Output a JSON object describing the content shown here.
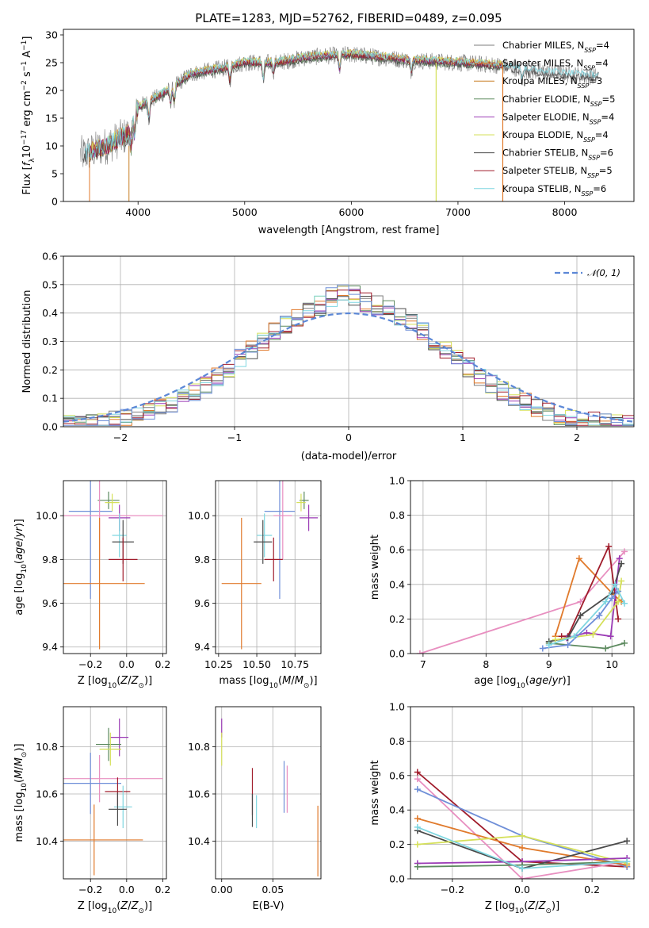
{
  "title": "PLATE=1283, MJD=52762, FIBERID=0489, z=0.095",
  "colors": {
    "c0": "#7e7e7e",
    "c1": "#e07a2c",
    "c2": "#c87f25",
    "c3": "#5d8a5f",
    "c4": "#9b3bb5",
    "c5": "#d5e05a",
    "c6": "#4a4a4a",
    "c7": "#a01c2b",
    "c8": "#7fd6e0",
    "gauss": "#5b87d6",
    "extra1": "#6f8fd8",
    "extra2": "#e88fc0"
  },
  "chart_data": [
    {
      "id": "spectrum",
      "type": "line",
      "title": "PLATE=1283, MJD=52762, FIBERID=0489, z=0.095",
      "xlabel": "wavelength [Angstrom, rest frame]",
      "ylabel": "Flux [f_λ10^-17 erg cm^-2 s^-1 A^-1]",
      "xlim": [
        3300,
        8650
      ],
      "ylim": [
        0,
        31
      ],
      "xticks": [
        4000,
        5000,
        6000,
        7000,
        8000
      ],
      "yticks": [
        0,
        5,
        10,
        15,
        20,
        25,
        30
      ],
      "grid": false,
      "legend_position": "top-right",
      "data_points": [
        [
          3500,
          8.5
        ],
        [
          3700,
          10
        ],
        [
          3900,
          12
        ],
        [
          4000,
          17
        ],
        [
          4200,
          19
        ],
        [
          4500,
          23
        ],
        [
          4800,
          24
        ],
        [
          5000,
          25
        ],
        [
          5300,
          25
        ],
        [
          5600,
          26
        ],
        [
          6000,
          26.5
        ],
        [
          6500,
          25.5
        ],
        [
          7000,
          25
        ],
        [
          7400,
          24.5
        ],
        [
          7700,
          23.5
        ],
        [
          8000,
          23
        ],
        [
          8300,
          22.5
        ]
      ],
      "series": [
        {
          "name": "Chabrier MILES, N_SSP=4",
          "color": "#7e7e7e"
        },
        {
          "name": "Salpeter MILES, N_SSP=4",
          "color": "#e07a2c"
        },
        {
          "name": "Kroupa MILES, N_SSP=3",
          "color": "#c87f25"
        },
        {
          "name": "Chabrier ELODIE, N_SSP=5",
          "color": "#5d8a5f"
        },
        {
          "name": "Salpeter ELODIE, N_SSP=4",
          "color": "#9b3bb5"
        },
        {
          "name": "Kroupa ELODIE, N_SSP=4",
          "color": "#d5e05a"
        },
        {
          "name": "Chabrier STELIB, N_SSP=6",
          "color": "#4a4a4a"
        },
        {
          "name": "Salpeter STELIB, N_SSP=5",
          "color": "#a01c2b"
        },
        {
          "name": "Kroupa STELIB, N_SSP=6",
          "color": "#7fd6e0"
        }
      ]
    },
    {
      "id": "residuals",
      "type": "area",
      "xlabel": "(data-model)/error",
      "ylabel": "Normed distribution",
      "xlim": [
        -2.5,
        2.5
      ],
      "ylim": [
        0,
        0.6
      ],
      "xticks": [
        -2,
        -1,
        0,
        1,
        2
      ],
      "yticks": [
        0.0,
        0.1,
        0.2,
        0.3,
        0.4,
        0.5,
        0.6
      ],
      "grid": true,
      "legend": "𝒩(0, 1)",
      "legend_position": "top-right",
      "bin_width": 0.1
    },
    {
      "id": "age-vs-Z",
      "type": "scatter",
      "xlabel": "Z [log10(Z/Z⊙)]",
      "ylabel": "age  [log10(age/yr)]",
      "xlim": [
        -0.35,
        0.22
      ],
      "ylim": [
        9.37,
        10.16
      ],
      "xticks": [
        -0.2,
        0.0,
        0.2
      ],
      "yticks": [
        9.4,
        9.6,
        9.8,
        10.0
      ],
      "grid": true,
      "points": [
        {
          "color": "#5d8a5f",
          "x": -0.1,
          "xerr": 0.06,
          "y": 10.07,
          "yerr": 0.04
        },
        {
          "color": "#d5e05a",
          "x": -0.08,
          "xerr": 0.04,
          "y": 10.06,
          "yerr": 0.04
        },
        {
          "color": "#6f8fd8",
          "x": -0.2,
          "xerr": 0.12,
          "y": 10.02,
          "yerr": 0.4
        },
        {
          "color": "#e88fc0",
          "x": -0.15,
          "xerr": 0.35,
          "y": 10.0,
          "yerr": 0.2
        },
        {
          "color": "#9b3bb5",
          "x": -0.04,
          "xerr": 0.06,
          "y": 9.99,
          "yerr": 0.06
        },
        {
          "color": "#7fd6e0",
          "x": -0.04,
          "xerr": 0.04,
          "y": 9.91,
          "yerr": 0.1
        },
        {
          "color": "#4a4a4a",
          "x": -0.02,
          "xerr": 0.06,
          "y": 9.88,
          "yerr": 0.1
        },
        {
          "color": "#a01c2b",
          "x": -0.02,
          "xerr": 0.08,
          "y": 9.8,
          "yerr": 0.1
        },
        {
          "color": "#e07a2c",
          "x": -0.15,
          "xerr": 0.25,
          "y": 9.69,
          "yerr": 0.3
        }
      ]
    },
    {
      "id": "age-vs-mass",
      "type": "scatter",
      "xlabel": "mass [log10(M/M⊙)]",
      "ylabel": "",
      "xlim": [
        10.23,
        10.92
      ],
      "ylim": [
        9.37,
        10.16
      ],
      "xticks": [
        10.25,
        10.5,
        10.75
      ],
      "yticks": [
        9.4,
        9.6,
        9.8,
        10.0
      ],
      "grid": true,
      "points": [
        {
          "color": "#5d8a5f",
          "x": 10.81,
          "xerr": 0.03,
          "y": 10.07,
          "yerr": 0.04
        },
        {
          "color": "#d5e05a",
          "x": 10.79,
          "xerr": 0.03,
          "y": 10.06,
          "yerr": 0.04
        },
        {
          "color": "#6f8fd8",
          "x": 10.65,
          "xerr": 0.1,
          "y": 10.02,
          "yerr": 0.4
        },
        {
          "color": "#e88fc0",
          "x": 10.67,
          "xerr": 0.06,
          "y": 10.0,
          "yerr": 0.2
        },
        {
          "color": "#9b3bb5",
          "x": 10.84,
          "xerr": 0.06,
          "y": 9.99,
          "yerr": 0.06
        },
        {
          "color": "#7fd6e0",
          "x": 10.55,
          "xerr": 0.05,
          "y": 9.91,
          "yerr": 0.1
        },
        {
          "color": "#4a4a4a",
          "x": 10.54,
          "xerr": 0.06,
          "y": 9.88,
          "yerr": 0.1
        },
        {
          "color": "#a01c2b",
          "x": 10.61,
          "xerr": 0.06,
          "y": 9.8,
          "yerr": 0.1
        },
        {
          "color": "#e07a2c",
          "x": 10.4,
          "xerr": 0.13,
          "y": 9.69,
          "yerr": 0.3
        }
      ]
    },
    {
      "id": "massweight-vs-age",
      "type": "line",
      "xlabel": "age  [log10(age/yr)]",
      "ylabel": "mass weight",
      "xlim": [
        6.8,
        10.35
      ],
      "ylim": [
        0,
        1
      ],
      "xticks": [
        7,
        8,
        9,
        10
      ],
      "yticks": [
        0.0,
        0.2,
        0.4,
        0.6,
        0.8,
        1.0
      ],
      "grid": true,
      "series": [
        {
          "color": "#e88fc0",
          "x": [
            6.95,
            9.5,
            10.2
          ],
          "y": [
            0.0,
            0.3,
            0.59
          ]
        },
        {
          "color": "#e07a2c",
          "x": [
            9.1,
            9.48,
            10.0,
            10.15
          ],
          "y": [
            0.1,
            0.55,
            0.35,
            0.3
          ]
        },
        {
          "color": "#a01c2b",
          "x": [
            9.2,
            9.3,
            9.95,
            10.1
          ],
          "y": [
            0.1,
            0.1,
            0.62,
            0.2
          ]
        },
        {
          "color": "#9b3bb5",
          "x": [
            9.28,
            9.6,
            9.98,
            10.12
          ],
          "y": [
            0.09,
            0.12,
            0.1,
            0.55
          ]
        },
        {
          "color": "#4a4a4a",
          "x": [
            9.0,
            9.3,
            9.5,
            10.0,
            10.15
          ],
          "y": [
            0.07,
            0.09,
            0.22,
            0.35,
            0.52
          ]
        },
        {
          "color": "#5d8a5f",
          "x": [
            9.0,
            9.9,
            10.2
          ],
          "y": [
            0.06,
            0.03,
            0.06
          ]
        },
        {
          "color": "#d5e05a",
          "x": [
            9.1,
            9.7,
            10.1,
            10.15
          ],
          "y": [
            0.08,
            0.11,
            0.3,
            0.42
          ]
        },
        {
          "color": "#6f8fd8",
          "x": [
            8.9,
            9.3,
            9.8,
            10.0,
            10.1
          ],
          "y": [
            0.03,
            0.05,
            0.22,
            0.32,
            0.36
          ]
        },
        {
          "color": "#7fd6e0",
          "x": [
            9.0,
            9.4,
            9.9,
            10.05,
            10.2
          ],
          "y": [
            0.05,
            0.1,
            0.3,
            0.4,
            0.29
          ]
        }
      ]
    },
    {
      "id": "mass-vs-Z",
      "type": "scatter",
      "xlabel": "Z [log10(Z/Z⊙)]",
      "ylabel": "mass [log10(M/M⊙)]",
      "xlim": [
        -0.35,
        0.22
      ],
      "ylim": [
        10.24,
        10.97
      ],
      "xticks": [
        -0.2,
        0.0,
        0.2
      ],
      "yticks": [
        10.4,
        10.6,
        10.8
      ],
      "grid": true,
      "points": [
        {
          "color": "#9b3bb5",
          "x": -0.04,
          "xerr": 0.05,
          "y": 10.84,
          "yerr": 0.08
        },
        {
          "color": "#5d8a5f",
          "x": -0.1,
          "xerr": 0.07,
          "y": 10.81,
          "yerr": 0.07
        },
        {
          "color": "#d5e05a",
          "x": -0.09,
          "xerr": 0.06,
          "y": 10.79,
          "yerr": 0.07
        },
        {
          "color": "#e88fc0",
          "x": -0.15,
          "xerr": 0.35,
          "y": 10.665,
          "yerr": 0.1
        },
        {
          "color": "#6f8fd8",
          "x": -0.2,
          "xerr": 0.17,
          "y": 10.645,
          "yerr": 0.13
        },
        {
          "color": "#a01c2b",
          "x": -0.05,
          "xerr": 0.07,
          "y": 10.61,
          "yerr": 0.06
        },
        {
          "color": "#7fd6e0",
          "x": -0.02,
          "xerr": 0.05,
          "y": 10.545,
          "yerr": 0.09
        },
        {
          "color": "#4a4a4a",
          "x": -0.05,
          "xerr": 0.05,
          "y": 10.535,
          "yerr": 0.07
        },
        {
          "color": "#e07a2c",
          "x": -0.18,
          "xerr": 0.27,
          "y": 10.405,
          "yerr": 0.15
        }
      ]
    },
    {
      "id": "mass-vs-EBV",
      "type": "scatter",
      "xlabel": "E(B-V)",
      "ylabel": "",
      "xlim": [
        -0.006,
        0.097
      ],
      "ylim": [
        10.24,
        10.97
      ],
      "xticks": [
        0.0,
        0.05
      ],
      "yticks": [
        10.4,
        10.6,
        10.8
      ],
      "grid": true,
      "points": [
        {
          "color": "#9b3bb5",
          "x": 0.0,
          "y": 10.88,
          "yerr": 0.04
        },
        {
          "color": "#d5e05a",
          "x": 0.0,
          "y": 10.79,
          "yerr": 0.07
        },
        {
          "color": "#a01c2b",
          "x": 0.03,
          "y": 10.61,
          "yerr": 0.1
        },
        {
          "color": "#4a4a4a",
          "x": 0.03,
          "y": 10.53,
          "yerr": 0.07
        },
        {
          "color": "#7fd6e0",
          "x": 0.034,
          "y": 10.525,
          "yerr": 0.07
        },
        {
          "color": "#6f8fd8",
          "x": 0.061,
          "y": 10.63,
          "yerr": 0.11
        },
        {
          "color": "#e88fc0",
          "x": 0.064,
          "y": 10.62,
          "yerr": 0.1
        },
        {
          "color": "#e07a2c",
          "x": 0.094,
          "y": 10.4,
          "yerr": 0.15
        }
      ]
    },
    {
      "id": "massweight-vs-Z",
      "type": "line",
      "xlabel": "Z [log10(Z/Z⊙)]",
      "ylabel": "mass weight",
      "xlim": [
        -0.32,
        0.32
      ],
      "ylim": [
        0,
        1
      ],
      "xticks": [
        -0.2,
        0.0,
        0.2
      ],
      "yticks": [
        0.0,
        0.2,
        0.4,
        0.6,
        0.8,
        1.0
      ],
      "grid": true,
      "series": [
        {
          "color": "#a01c2b",
          "x": [
            -0.3,
            0.0,
            0.3
          ],
          "y": [
            0.62,
            0.1,
            0.07
          ]
        },
        {
          "color": "#e88fc0",
          "x": [
            -0.3,
            0.0,
            0.3
          ],
          "y": [
            0.58,
            0.0,
            0.1
          ]
        },
        {
          "color": "#6f8fd8",
          "x": [
            -0.3,
            0.0,
            0.3
          ],
          "y": [
            0.52,
            0.25,
            0.07
          ]
        },
        {
          "color": "#e07a2c",
          "x": [
            -0.3,
            0.0,
            0.3
          ],
          "y": [
            0.35,
            0.18,
            0.08
          ]
        },
        {
          "color": "#4a4a4a",
          "x": [
            -0.3,
            0.0,
            0.3
          ],
          "y": [
            0.28,
            0.06,
            0.22
          ]
        },
        {
          "color": "#d5e05a",
          "x": [
            -0.3,
            0.0,
            0.3
          ],
          "y": [
            0.2,
            0.25,
            0.09
          ]
        },
        {
          "color": "#9b3bb5",
          "x": [
            -0.3,
            0.0,
            0.3
          ],
          "y": [
            0.09,
            0.1,
            0.12
          ]
        },
        {
          "color": "#5d8a5f",
          "x": [
            -0.3,
            0.0,
            0.3
          ],
          "y": [
            0.07,
            0.08,
            0.1
          ]
        },
        {
          "color": "#7fd6e0",
          "x": [
            -0.3,
            0.0,
            0.3
          ],
          "y": [
            0.3,
            0.06,
            0.1
          ]
        }
      ]
    }
  ]
}
